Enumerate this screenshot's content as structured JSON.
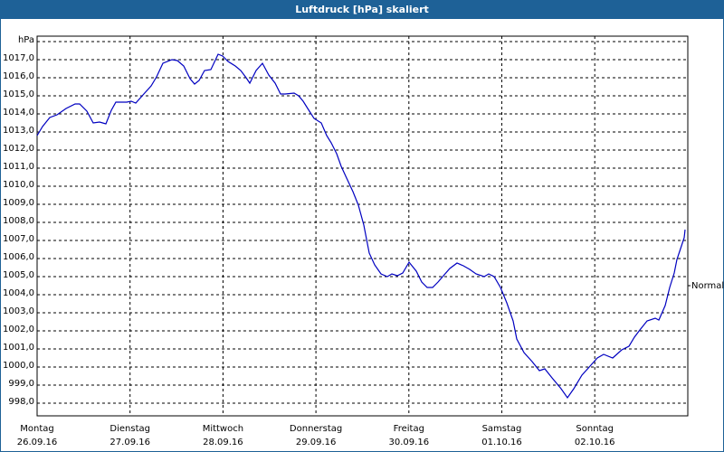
{
  "window": {
    "title": "Luftdruck [hPa] skaliert"
  },
  "chart_data": {
    "type": "line",
    "title": "Luftdruck [hPa] skaliert",
    "ylabel": "hPa",
    "xlabel": "",
    "ylim": [
      997.5,
      1018.0
    ],
    "grid": true,
    "y_ticks": [
      "1017,0",
      "1016,0",
      "1015,0",
      "1014,0",
      "1013,0",
      "1012,0",
      "1011,0",
      "1010,0",
      "1009,0",
      "1008,0",
      "1007,0",
      "1006,0",
      "1005,0",
      "1004,0",
      "1003,0",
      "1002,0",
      "1001,0",
      "1000,0",
      "999,0",
      "998,0"
    ],
    "x_ticks": [
      {
        "day": "Montag",
        "date": "26.09.16"
      },
      {
        "day": "Dienstag",
        "date": "27.09.16"
      },
      {
        "day": "Mittwoch",
        "date": "28.09.16"
      },
      {
        "day": "Donnerstag",
        "date": "29.09.16"
      },
      {
        "day": "Freitag",
        "date": "30.09.16"
      },
      {
        "day": "Samstag",
        "date": "01.10.16"
      },
      {
        "day": "Sonntag",
        "date": "02.10.16"
      }
    ],
    "annotation": {
      "label": "Normal",
      "value": 1004.8
    },
    "series": [
      {
        "name": "Luftdruck",
        "color": "#0000c0",
        "x_days": [
          0,
          0.25,
          0.5,
          0.75,
          1.0,
          1.25,
          1.5,
          1.75,
          2.0,
          2.25,
          2.5,
          2.75,
          3.0,
          3.25,
          3.5,
          3.75,
          4.0,
          4.25,
          4.5,
          4.75,
          5.0,
          5.25,
          5.5,
          5.75,
          6.0,
          6.25,
          6.5,
          6.75,
          7.0,
          7.15
        ],
        "values": [
          1012.8,
          1013.9,
          1014.6,
          1013.4,
          1014.7,
          1015.6,
          1016.8,
          1015.8,
          1017.2,
          1016.5,
          1016.4,
          1015.1,
          1013.7,
          1011.3,
          1008.5,
          1005.5,
          1005.8,
          1004.4,
          1005.8,
          1005.1,
          1004.5,
          1001.2,
          999.7,
          998.4,
          1000.5,
          1000.6,
          1002.0,
          1002.8,
          1006.0,
          1007.6
        ]
      }
    ]
  },
  "legend_right": {
    "normal_label": "Normal"
  }
}
